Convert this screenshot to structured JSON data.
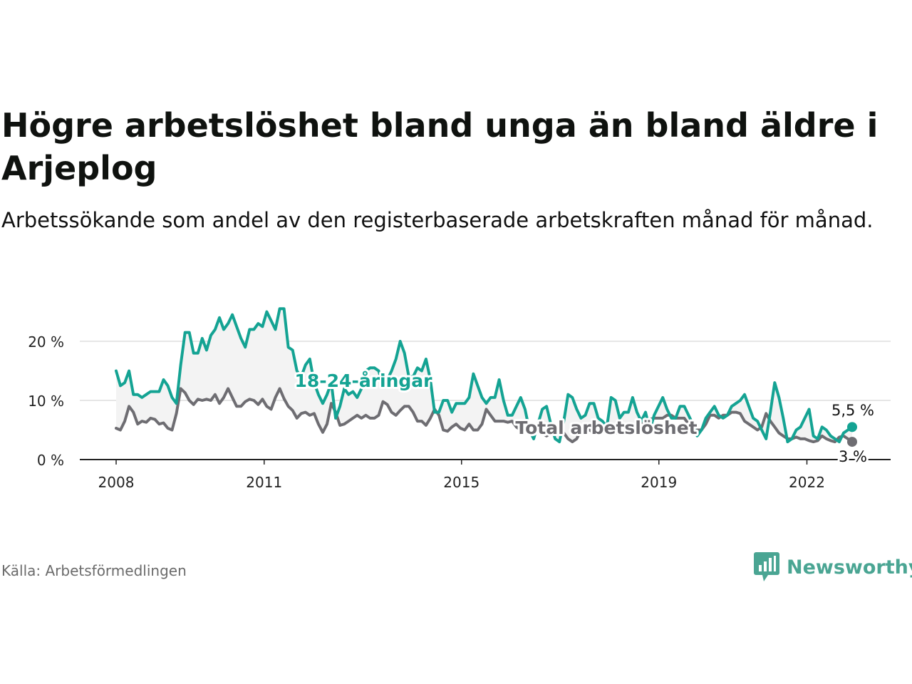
{
  "title": "Högre arbetslöshet bland unga än bland äldre i Arjeplog",
  "subtitle": "Arbetssökande som andel av den registerbaserade arbetskraften månad för månad.",
  "source": "Källa: Arbetsförmedlingen",
  "brand": {
    "name": "Newsworthy",
    "icon": "newsworthy-logo-icon",
    "color": "#4aa593"
  },
  "chart_data": {
    "type": "line",
    "title": "Högre arbetslöshet bland unga än bland äldre i Arjeplog",
    "xlabel": "",
    "ylabel": "",
    "xlim": [
      2008.0,
      2022.917
    ],
    "ylim": [
      0,
      25
    ],
    "y_ticks": [
      0,
      10,
      20
    ],
    "y_tick_labels": [
      "0 %",
      "10 %",
      "20 %"
    ],
    "x_ticks": [
      2008,
      2011,
      2015,
      2019,
      2022
    ],
    "x_tick_labels": [
      "2008",
      "2011",
      "2015",
      "2019",
      "2022"
    ],
    "grid": true,
    "shaded_area_between_series": true,
    "series": [
      {
        "name": "18-24-åringar",
        "label": "18-24-åringar",
        "color": "#14a393",
        "end_label": "5,5 %",
        "values": [
          15,
          12.5,
          13,
          15,
          11,
          11,
          10.5,
          11,
          11.5,
          11.5,
          11.5,
          13.5,
          12.5,
          10.5,
          9.5,
          16,
          21.5,
          21.5,
          18,
          18,
          20.5,
          18.5,
          21,
          22,
          24,
          22,
          23,
          24.5,
          22.5,
          20.5,
          19,
          22,
          22,
          23,
          22.5,
          25,
          23.5,
          22,
          25.5,
          25.5,
          19,
          18.5,
          15,
          14,
          16,
          17,
          13,
          11,
          9.5,
          11,
          13,
          7,
          9,
          12,
          11,
          11.5,
          10.5,
          12,
          15,
          15.5,
          15.5,
          15,
          12.5,
          13.5,
          15,
          17,
          20,
          18,
          14,
          14,
          15.5,
          15,
          17,
          13.5,
          8,
          8,
          10,
          10,
          8,
          9.5,
          9.5,
          9.5,
          10.5,
          14.5,
          12.5,
          10.5,
          9.5,
          10.5,
          10.5,
          13.5,
          10,
          7.5,
          7.5,
          9,
          10.5,
          8.5,
          5,
          3.5,
          6,
          8.5,
          9,
          6,
          3.5,
          3,
          6.5,
          11,
          10.5,
          8.5,
          7,
          7.5,
          9.5,
          9.5,
          7,
          6.5,
          5.5,
          10.5,
          10,
          7,
          8,
          8,
          10.5,
          8,
          6.5,
          8,
          5,
          7.5,
          9,
          10.5,
          8.5,
          7,
          7,
          9,
          9,
          7.5,
          6,
          4,
          5,
          7,
          8,
          9,
          7.5,
          7,
          7.5,
          9,
          9.5,
          10,
          11,
          9,
          7,
          6.5,
          5,
          3.5,
          8,
          13,
          10.5,
          7,
          3,
          3.5,
          5,
          5.5,
          7,
          8.5,
          4,
          3.5,
          5.5,
          5,
          4,
          3.5,
          3,
          4.5,
          5,
          5.5
        ]
      },
      {
        "name": "Total arbetslöshet",
        "label": "Total arbetslöshet",
        "color": "#6e6d72",
        "end_label": "3 %",
        "values": [
          5.3,
          5,
          6.5,
          9,
          8,
          6,
          6.5,
          6.3,
          7,
          6.8,
          6,
          6.2,
          5.3,
          5,
          7.8,
          12,
          11.3,
          10,
          9.3,
          10.2,
          10,
          10.2,
          10,
          11,
          9.5,
          10.5,
          12,
          10.5,
          9,
          9,
          9.8,
          10.2,
          10,
          9.3,
          10.2,
          9,
          8.5,
          10.5,
          12,
          10.3,
          9,
          8.3,
          7,
          7.8,
          8,
          7.5,
          7.8,
          6,
          4.6,
          6,
          9.5,
          8,
          5.8,
          6,
          6.5,
          7,
          7.5,
          7,
          7.5,
          7,
          7,
          7.5,
          9.8,
          9.3,
          8,
          7.5,
          8.3,
          9,
          9,
          8,
          6.5,
          6.5,
          5.8,
          7,
          8.5,
          7.5,
          5,
          4.8,
          5.5,
          6,
          5.3,
          5,
          6,
          5,
          5,
          6,
          8.5,
          7.5,
          6.5,
          6.5,
          6.5,
          6.3,
          6.5,
          5.5,
          5,
          5,
          5,
          5.3,
          5.5,
          4.5,
          4,
          4.5,
          5,
          5.5,
          4.5,
          3.5,
          3,
          3.5,
          5,
          5.5,
          5,
          4.5,
          5,
          5,
          5.5,
          5,
          4.5,
          4.5,
          4.8,
          5,
          5.5,
          5.5,
          6,
          6.5,
          6.8,
          7,
          7,
          7,
          7.5,
          7.5,
          7,
          7,
          7,
          6,
          5.5,
          5,
          5,
          6,
          7.5,
          7.5,
          7,
          7.5,
          7.5,
          8,
          8,
          7.8,
          6.5,
          6,
          5.5,
          5,
          5.5,
          7.8,
          6.5,
          5.5,
          4.5,
          4,
          3.5,
          3.5,
          3.8,
          3.5,
          3.5,
          3.2,
          3,
          3.2,
          4,
          3.5,
          3.2,
          3,
          3.8,
          4,
          3.5,
          3
        ]
      }
    ]
  }
}
